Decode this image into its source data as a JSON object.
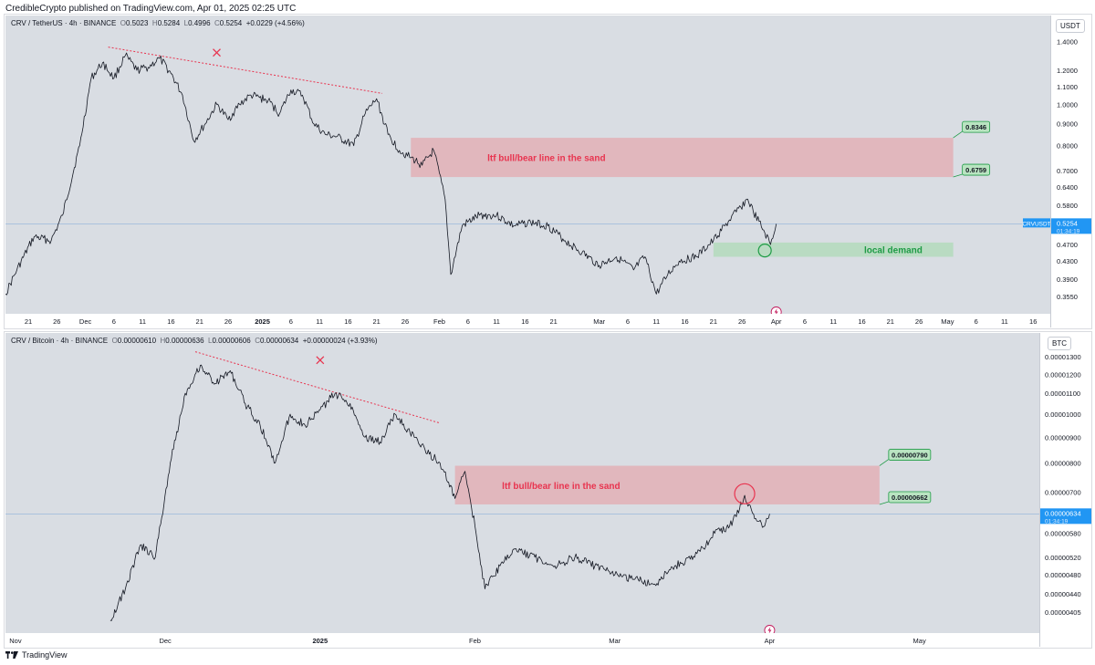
{
  "header": {
    "published": "CredibleCrypto published on TradingView.com, Apr 01, 2025 02:25 UTC"
  },
  "footer": {
    "brand": "TradingView"
  },
  "colors": {
    "zone_red": "#e8979f",
    "zone_green": "#9ed8a8",
    "accent_blue": "#2196f3",
    "price_line": "#131722"
  },
  "chart_data": [
    {
      "type": "line",
      "symbol": "CRV / TetherUS · 4h · BINANCE",
      "ohlc": {
        "O": "0.5023",
        "H": "0.5284",
        "L": "0.4996",
        "C": "0.5254",
        "chg": "+0.0229 (+4.56%)"
      },
      "currency": "USDT",
      "scale": "log",
      "y_ticks": [
        "1.4000",
        "1.2000",
        "1.1000",
        "1.0000",
        "0.9000",
        "0.8000",
        "0.7000",
        "0.6400",
        "0.5800",
        "0.5254",
        "0.4700",
        "0.4300",
        "0.3900",
        "0.3550"
      ],
      "x_ticks": [
        "21",
        "26",
        "Dec",
        "6",
        "11",
        "16",
        "21",
        "26",
        "2025",
        "6",
        "11",
        "16",
        "21",
        "26",
        "Feb",
        "6",
        "11",
        "16",
        "21",
        "Mar",
        "6",
        "11",
        "16",
        "21",
        "26",
        "Apr",
        "6",
        "11",
        "16",
        "21",
        "26",
        "May",
        "6",
        "11",
        "16"
      ],
      "x_dates": [
        "2024-11-21",
        "2024-11-26",
        "2024-12-01",
        "2024-12-06",
        "2024-12-11",
        "2024-12-16",
        "2024-12-21",
        "2024-12-26",
        "2025-01-01",
        "2025-01-06",
        "2025-01-11",
        "2025-01-16",
        "2025-01-21",
        "2025-01-26",
        "2025-02-01",
        "2025-02-06",
        "2025-02-11",
        "2025-02-16",
        "2025-02-21",
        "2025-03-01",
        "2025-03-06",
        "2025-03-11",
        "2025-03-16",
        "2025-03-21",
        "2025-03-26",
        "2025-04-01",
        "2025-04-06",
        "2025-04-11",
        "2025-04-16",
        "2025-04-21",
        "2025-04-26",
        "2025-05-01",
        "2025-05-06",
        "2025-05-11",
        "2025-05-16"
      ],
      "x_range": [
        "2024-11-17",
        "2025-05-19"
      ],
      "y_range": [
        0.34,
        1.55
      ],
      "price": {
        "x": [
          "2024-11-17",
          "2024-11-19",
          "2024-11-22",
          "2024-11-25",
          "2024-11-27",
          "2024-11-30",
          "2024-12-02",
          "2024-12-04",
          "2024-12-06",
          "2024-12-08",
          "2024-12-10",
          "2024-12-12",
          "2024-12-14",
          "2024-12-16",
          "2024-12-18",
          "2024-12-20",
          "2024-12-22",
          "2024-12-24",
          "2024-12-26",
          "2024-12-28",
          "2024-12-30",
          "2025-01-02",
          "2025-01-04",
          "2025-01-06",
          "2025-01-08",
          "2025-01-10",
          "2025-01-12",
          "2025-01-14",
          "2025-01-17",
          "2025-01-19",
          "2025-01-21",
          "2025-01-23",
          "2025-01-25",
          "2025-01-27",
          "2025-01-29",
          "2025-01-31",
          "2025-02-02",
          "2025-02-03",
          "2025-02-05",
          "2025-02-08",
          "2025-02-11",
          "2025-02-14",
          "2025-02-17",
          "2025-02-20",
          "2025-02-23",
          "2025-02-26",
          "2025-03-01",
          "2025-03-04",
          "2025-03-07",
          "2025-03-09",
          "2025-03-11",
          "2025-03-13",
          "2025-03-15",
          "2025-03-18",
          "2025-03-21",
          "2025-03-23",
          "2025-03-25",
          "2025-03-27",
          "2025-03-28",
          "2025-03-30",
          "2025-03-31",
          "2025-04-01"
        ],
        "y": [
          0.36,
          0.41,
          0.49,
          0.48,
          0.55,
          0.8,
          1.15,
          1.25,
          1.15,
          1.3,
          1.2,
          1.22,
          1.28,
          1.18,
          1.05,
          0.82,
          0.9,
          1.0,
          0.92,
          1.0,
          1.05,
          1.02,
          0.95,
          1.08,
          1.05,
          0.9,
          0.85,
          0.84,
          0.8,
          0.95,
          1.03,
          0.85,
          0.78,
          0.75,
          0.72,
          0.78,
          0.6,
          0.4,
          0.52,
          0.55,
          0.55,
          0.52,
          0.53,
          0.52,
          0.48,
          0.45,
          0.42,
          0.44,
          0.41,
          0.44,
          0.36,
          0.4,
          0.43,
          0.44,
          0.48,
          0.52,
          0.56,
          0.6,
          0.56,
          0.5,
          0.47,
          0.5254
        ]
      },
      "trendline": {
        "x": [
          "2024-12-05",
          "2025-01-22"
        ],
        "y": [
          1.36,
          1.06
        ]
      },
      "marker_x": {
        "x": "2024-12-24",
        "y": 1.32
      },
      "zones": [
        {
          "label": "ltf bull/bear line in the sand",
          "x0": "2025-01-27",
          "x1": "2025-05-02",
          "y0": 0.6759,
          "y1": 0.8346,
          "color": "#e8979f"
        },
        {
          "label": "local demand",
          "x0": "2025-03-21",
          "x1": "2025-05-02",
          "y0": 0.44,
          "y1": 0.475,
          "color": "#9ed8a8"
        }
      ],
      "callouts": [
        "0.8346",
        "0.6759"
      ],
      "last_price": {
        "value": "0.5254",
        "label": "CRVUSDT",
        "timer": "01:34:19"
      }
    },
    {
      "type": "line",
      "symbol": "CRV / Bitcoin · 4h · BINANCE",
      "ohlc": {
        "O": "0.00000610",
        "H": "0.00000636",
        "L": "0.00000606",
        "C": "0.00000634",
        "chg": "+0.00000024 (+3.93%)"
      },
      "currency": "BTC",
      "scale": "log",
      "y_ticks": [
        "0.00001300",
        "0.00001200",
        "0.00001100",
        "0.00001000",
        "0.00000900",
        "0.00000800",
        "0.00000700",
        "0.00000580",
        "0.00000520",
        "0.00000480",
        "0.00000440",
        "0.00000405"
      ],
      "x_ticks": [
        "Nov",
        "Dec",
        "2025",
        "Feb",
        "Mar",
        "Apr",
        "May"
      ],
      "x_dates": [
        "2024-11-01",
        "2024-12-01",
        "2025-01-01",
        "2025-02-01",
        "2025-03-01",
        "2025-04-01",
        "2025-05-01"
      ],
      "x_range": [
        "2024-10-30",
        "2025-05-25"
      ],
      "y_range": [
        3.85e-06,
        1.39e-05
      ],
      "price": {
        "x": [
          "2024-11-20",
          "2024-11-23",
          "2024-11-26",
          "2024-11-29",
          "2024-12-02",
          "2024-12-05",
          "2024-12-08",
          "2024-12-11",
          "2024-12-14",
          "2024-12-17",
          "2024-12-20",
          "2024-12-23",
          "2024-12-26",
          "2024-12-29",
          "2025-01-01",
          "2025-01-04",
          "2025-01-07",
          "2025-01-10",
          "2025-01-13",
          "2025-01-16",
          "2025-01-19",
          "2025-01-22",
          "2025-01-25",
          "2025-01-28",
          "2025-01-30",
          "2025-02-01",
          "2025-02-03",
          "2025-02-06",
          "2025-02-09",
          "2025-02-13",
          "2025-02-17",
          "2025-02-21",
          "2025-02-25",
          "2025-03-01",
          "2025-03-05",
          "2025-03-09",
          "2025-03-13",
          "2025-03-17",
          "2025-03-21",
          "2025-03-24",
          "2025-03-26",
          "2025-03-27",
          "2025-03-29",
          "2025-03-31",
          "2025-04-01"
        ],
        "y": [
          3.9e-06,
          4.5e-06,
          5.5e-06,
          5.2e-06,
          8e-06,
          1.1e-05,
          1.25e-05,
          1.15e-05,
          1.22e-05,
          1.05e-05,
          9.5e-06,
          8e-06,
          1e-05,
          9.5e-06,
          1.02e-05,
          1.1e-05,
          1.05e-05,
          9e-06,
          8.8e-06,
          1e-05,
          9.2e-06,
          8.5e-06,
          8e-06,
          6.8e-06,
          7.7e-06,
          6e-06,
          4.5e-06,
          5e-06,
          5.4e-06,
          5.2e-06,
          5e-06,
          5.2e-06,
          5e-06,
          4.8e-06,
          4.7e-06,
          4.6e-06,
          5e-06,
          5.2e-06,
          5.8e-06,
          6e-06,
          6.5e-06,
          6.9e-06,
          6.2e-06,
          6e-06,
          6.34e-06
        ]
      },
      "trendline": {
        "x": [
          "2024-12-07",
          "2025-01-25"
        ],
        "y": [
          1.33e-05,
          9.6e-06
        ]
      },
      "marker_x": {
        "x": "2025-01-01",
        "y": 1.28e-05
      },
      "zones": [
        {
          "label": "ltf bull/bear line in the sand",
          "x0": "2025-01-28",
          "x1": "2025-04-23",
          "y0": 6.62e-06,
          "y1": 7.9e-06,
          "color": "#e8979f"
        }
      ],
      "circle": {
        "x": "2025-03-27",
        "y": 6.95e-06
      },
      "callouts": [
        "0.00000790",
        "0.00000662"
      ],
      "last_price": {
        "value": "0.00000634",
        "label": "",
        "timer": "01:34:19"
      }
    }
  ]
}
